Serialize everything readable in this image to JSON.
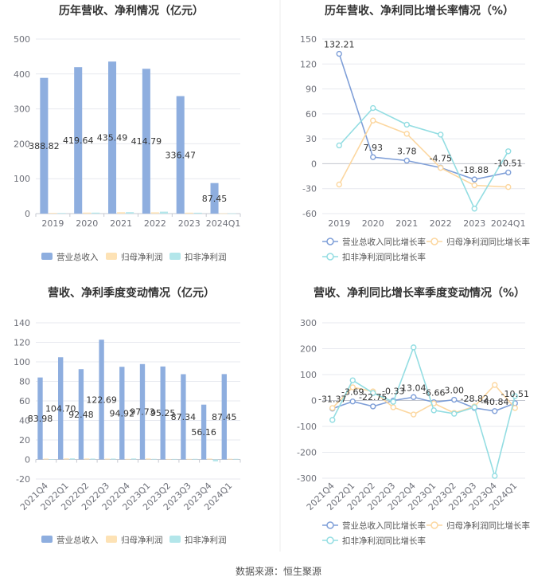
{
  "footer": {
    "source": "数据来源：恒生聚源"
  },
  "chart_data": [
    {
      "type": "bar",
      "title": "历年营收、净利情况（亿元）",
      "categories": [
        "2019",
        "2020",
        "2021",
        "2022",
        "2023",
        "2024Q1"
      ],
      "series": [
        {
          "name": "营业总收入",
          "color": "#8eaedf",
          "values": [
            388.82,
            419.64,
            435.49,
            414.79,
            336.47,
            87.45
          ],
          "labels": [
            "388.82",
            "419.64",
            "435.49",
            "414.79",
            "336.47",
            "87.45"
          ]
        },
        {
          "name": "归母净利润",
          "color": "#fde2b5",
          "values": [
            1.9,
            2.9,
            3.9,
            3.7,
            2.7,
            0.7
          ]
        },
        {
          "name": "扣非净利润",
          "color": "#b3e6ea",
          "values": [
            1.7,
            2.8,
            4.1,
            5.5,
            2.5,
            0.6
          ]
        }
      ],
      "ylim": [
        0,
        500
      ],
      "yticks": [
        0,
        100,
        200,
        300,
        400,
        500
      ],
      "grid": true,
      "legend": "bottom"
    },
    {
      "type": "line",
      "title": "历年营收、净利同比增长率情况（%）",
      "categories": [
        "2019",
        "2020",
        "2021",
        "2022",
        "2023",
        "2024Q1"
      ],
      "series": [
        {
          "name": "营业总收入同比增长率",
          "color": "#7f9fd8",
          "values": [
            132.21,
            7.93,
            3.78,
            -4.75,
            -18.88,
            -10.51
          ],
          "labels": [
            "132.21",
            "7.93",
            "3.78",
            "-4.75",
            "-18.88",
            "-10.51"
          ]
        },
        {
          "name": "归母净利润同比增长率",
          "color": "#fcd7a0",
          "values": [
            -25,
            52,
            36,
            -5,
            -26,
            -28
          ]
        },
        {
          "name": "扣非净利润同比增长率",
          "color": "#93dde2",
          "values": [
            22,
            67,
            47,
            35,
            -54,
            15
          ]
        }
      ],
      "ylim": [
        -60,
        150
      ],
      "yticks": [
        -60,
        -30,
        0,
        30,
        60,
        90,
        120,
        150
      ],
      "grid": true,
      "legend": "bottom"
    },
    {
      "type": "bar",
      "title": "营收、净利季度变动情况（亿元）",
      "categories": [
        "2021Q4",
        "2022Q1",
        "2022Q2",
        "2022Q3",
        "2022Q4",
        "2023Q1",
        "2023Q2",
        "2023Q3",
        "2023Q4",
        "2024Q1"
      ],
      "series": [
        {
          "name": "营业总收入",
          "color": "#8eaedf",
          "values": [
            83.98,
            104.7,
            92.48,
            122.69,
            94.92,
            97.73,
            95.25,
            87.34,
            56.16,
            87.45
          ],
          "labels": [
            "83.98",
            "104.70",
            "92.48",
            "122.69",
            "94.92",
            "97.73",
            "95.25",
            "87.34",
            "56.16",
            "87.45"
          ]
        },
        {
          "name": "归母净利润",
          "color": "#fde2b5",
          "values": [
            0.9,
            1.1,
            1.0,
            0.8,
            0.6,
            1.0,
            0.5,
            0.6,
            0.9,
            0.7
          ]
        },
        {
          "name": "扣非净利润",
          "color": "#b3e6ea",
          "values": [
            0.4,
            1.1,
            0.9,
            0.9,
            1.0,
            0.6,
            0.5,
            0.6,
            -1.9,
            0.6
          ]
        }
      ],
      "ylim": [
        -20,
        140
      ],
      "yticks": [
        -20,
        0,
        20,
        40,
        60,
        80,
        100,
        120,
        140
      ],
      "grid": true,
      "legend": "bottom"
    },
    {
      "type": "line",
      "title": "营收、净利同比增长率季度变动情况（%）",
      "categories": [
        "2021Q4",
        "2022Q1",
        "2022Q2",
        "2022Q3",
        "2022Q4",
        "2023Q1",
        "2023Q2",
        "2023Q3",
        "2023Q4",
        "2024Q1"
      ],
      "series": [
        {
          "name": "营业总收入同比增长率",
          "color": "#7f9fd8",
          "values": [
            -31.37,
            -3.69,
            -22.75,
            -0.33,
            13.04,
            -6.66,
            3.0,
            -28.82,
            -40.84,
            -10.51
          ],
          "labels": [
            "-31.37",
            "-3.69",
            "-22.75",
            "-0.33",
            "13.04",
            "-6.66",
            "3.00",
            "-28.82",
            "-40.84",
            "-10.51"
          ]
        },
        {
          "name": "归母净利润同比增长率",
          "color": "#fcd7a0",
          "values": [
            -29,
            51,
            35,
            -26,
            -54,
            -11,
            -48,
            -23,
            60,
            -29
          ]
        },
        {
          "name": "扣非净利润同比增长率",
          "color": "#93dde2",
          "values": [
            -75,
            78,
            29,
            -5,
            205,
            -38,
            -51,
            -26,
            -291,
            17
          ]
        }
      ],
      "ylim": [
        -300,
        300
      ],
      "yticks": [
        -300,
        -200,
        -100,
        0,
        100,
        200,
        300
      ],
      "grid": true,
      "legend": "bottom"
    }
  ]
}
